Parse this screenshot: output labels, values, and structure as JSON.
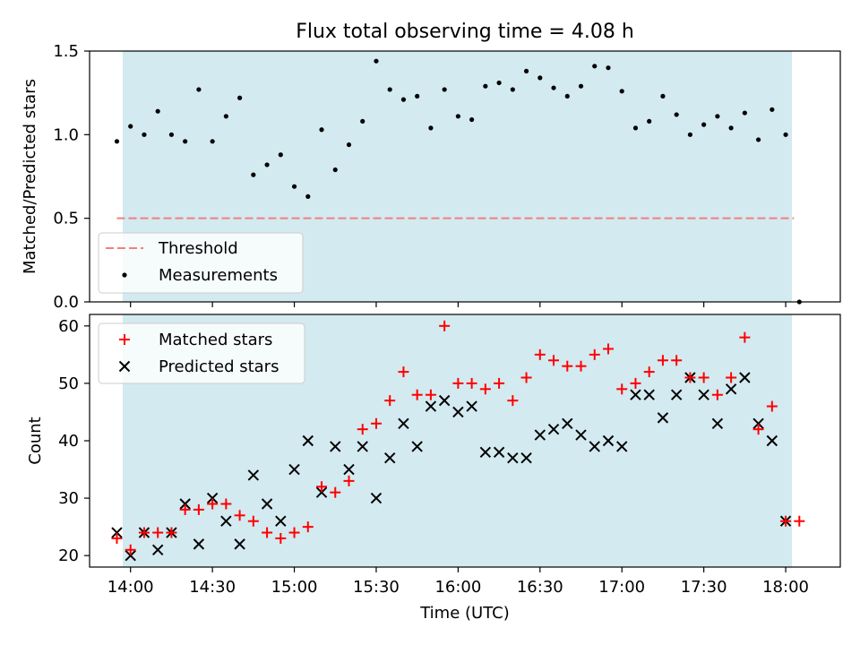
{
  "chart_data": [
    {
      "type": "scatter",
      "title": "Flux total observing time = 4.08 h",
      "ylabel": "Matched/Predicted stars",
      "ylim": [
        0.0,
        1.5
      ],
      "yticks": [
        "0.0",
        "0.5",
        "1.0",
        "1.5"
      ],
      "threshold": 0.5,
      "legend": {
        "placement": "lower-left",
        "threshold_label": "Threshold",
        "measurements_label": "Measurements"
      },
      "series": [
        {
          "name": "Measurements",
          "x": [
            "13:55",
            "14:00",
            "14:05",
            "14:10",
            "14:15",
            "14:20",
            "14:25",
            "14:30",
            "14:35",
            "14:40",
            "14:45",
            "14:50",
            "14:55",
            "15:00",
            "15:05",
            "15:10",
            "15:15",
            "15:20",
            "15:25",
            "15:30",
            "15:35",
            "15:40",
            "15:45",
            "15:50",
            "15:55",
            "16:00",
            "16:05",
            "16:10",
            "16:15",
            "16:20",
            "16:25",
            "16:30",
            "16:35",
            "16:40",
            "16:45",
            "16:50",
            "16:55",
            "17:00",
            "17:05",
            "17:10",
            "17:15",
            "17:20",
            "17:25",
            "17:30",
            "17:35",
            "17:40",
            "17:45",
            "17:50",
            "17:55",
            "18:00",
            "18:05"
          ],
          "y": [
            0.96,
            1.05,
            1.0,
            1.14,
            1.0,
            0.96,
            1.27,
            0.96,
            1.11,
            1.22,
            0.76,
            0.82,
            0.88,
            0.69,
            0.63,
            1.03,
            0.79,
            0.94,
            1.08,
            1.44,
            1.27,
            1.21,
            1.23,
            1.04,
            1.27,
            1.11,
            1.09,
            1.29,
            1.31,
            1.27,
            1.38,
            1.34,
            1.28,
            1.23,
            1.29,
            1.41,
            1.4,
            1.26,
            1.04,
            1.08,
            1.23,
            1.12,
            1.0,
            1.06,
            1.11,
            1.04,
            1.13,
            0.97,
            1.15,
            1.0,
            0.0
          ]
        }
      ]
    },
    {
      "type": "scatter",
      "ylabel": "Count",
      "xlabel": "Time (UTC)",
      "ylim": [
        18,
        62
      ],
      "yticks": [
        "20",
        "30",
        "40",
        "50",
        "60"
      ],
      "xticks": [
        "14:00",
        "14:30",
        "15:00",
        "15:30",
        "16:00",
        "16:30",
        "17:00",
        "17:30",
        "18:00"
      ],
      "legend": {
        "placement": "upper-left"
      },
      "series": [
        {
          "name": "Matched stars",
          "color": "#ff0000",
          "x": [
            "13:55",
            "14:00",
            "14:05",
            "14:10",
            "14:15",
            "14:20",
            "14:25",
            "14:30",
            "14:35",
            "14:40",
            "14:45",
            "14:50",
            "14:55",
            "15:00",
            "15:05",
            "15:10",
            "15:15",
            "15:20",
            "15:25",
            "15:30",
            "15:35",
            "15:40",
            "15:45",
            "15:50",
            "15:55",
            "16:00",
            "16:05",
            "16:10",
            "16:15",
            "16:20",
            "16:25",
            "16:30",
            "16:35",
            "16:40",
            "16:45",
            "16:50",
            "16:55",
            "17:00",
            "17:05",
            "17:10",
            "17:15",
            "17:20",
            "17:25",
            "17:30",
            "17:35",
            "17:40",
            "17:45",
            "17:50",
            "17:55",
            "18:00",
            "18:05"
          ],
          "y": [
            23,
            21,
            24,
            24,
            24,
            28,
            28,
            29,
            29,
            27,
            26,
            24,
            23,
            24,
            25,
            32,
            31,
            33,
            42,
            43,
            47,
            52,
            48,
            48,
            60,
            50,
            50,
            49,
            50,
            47,
            51,
            55,
            54,
            53,
            53,
            55,
            56,
            49,
            50,
            52,
            54,
            54,
            51,
            51,
            48,
            51,
            58,
            42,
            46,
            26,
            26
          ]
        },
        {
          "name": "Predicted stars",
          "color": "#000000",
          "x": [
            "13:55",
            "14:00",
            "14:05",
            "14:10",
            "14:15",
            "14:20",
            "14:25",
            "14:30",
            "14:35",
            "14:40",
            "14:45",
            "14:50",
            "14:55",
            "15:00",
            "15:05",
            "15:10",
            "15:15",
            "15:20",
            "15:25",
            "15:30",
            "15:35",
            "15:40",
            "15:45",
            "15:50",
            "15:55",
            "16:00",
            "16:05",
            "16:10",
            "16:15",
            "16:20",
            "16:25",
            "16:30",
            "16:35",
            "16:40",
            "16:45",
            "16:50",
            "16:55",
            "17:00",
            "17:05",
            "17:10",
            "17:15",
            "17:20",
            "17:25",
            "17:30",
            "17:35",
            "17:40",
            "17:45",
            "17:50",
            "17:55",
            "18:00"
          ],
          "y": [
            24,
            20,
            24,
            21,
            24,
            29,
            22,
            30,
            26,
            22,
            34,
            29,
            26,
            35,
            40,
            31,
            39,
            35,
            39,
            30,
            37,
            43,
            39,
            46,
            47,
            45,
            46,
            38,
            38,
            37,
            37,
            41,
            42,
            43,
            41,
            39,
            40,
            39,
            48,
            48,
            44,
            48,
            51,
            48,
            43,
            49,
            51,
            43,
            40,
            26
          ]
        }
      ]
    }
  ],
  "colors": {
    "observing_band": "#d3eaf0",
    "threshold_line": "#f08080"
  }
}
